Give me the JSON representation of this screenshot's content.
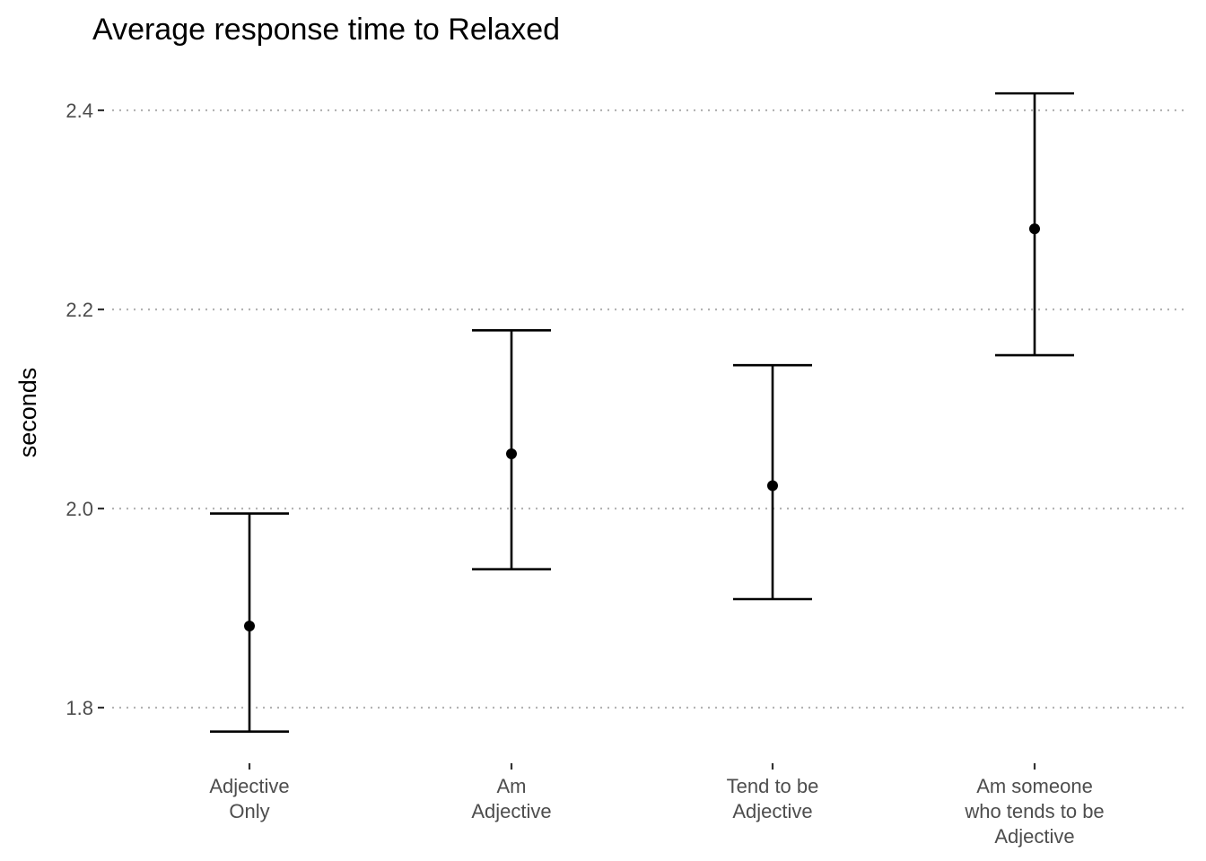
{
  "chart_data": {
    "type": "errorbar",
    "title": "Average response time to Relaxed",
    "xlabel": "",
    "ylabel": "seconds",
    "categories": [
      [
        "Adjective",
        "Only"
      ],
      [
        "Am",
        "Adjective"
      ],
      [
        "Tend to be",
        "Adjective"
      ],
      [
        "Am someone",
        "who tends to be",
        "Adjective"
      ]
    ],
    "values": [
      1.882,
      2.055,
      2.023,
      2.281
    ],
    "lower": [
      1.776,
      1.939,
      1.909,
      2.154
    ],
    "upper": [
      1.995,
      2.179,
      2.144,
      2.417
    ],
    "yticks": [
      "1.8",
      "2.0",
      "2.2",
      "2.4"
    ],
    "ylim": [
      1.75,
      2.43
    ],
    "grid": "horizontal dotted",
    "legend": "none"
  }
}
